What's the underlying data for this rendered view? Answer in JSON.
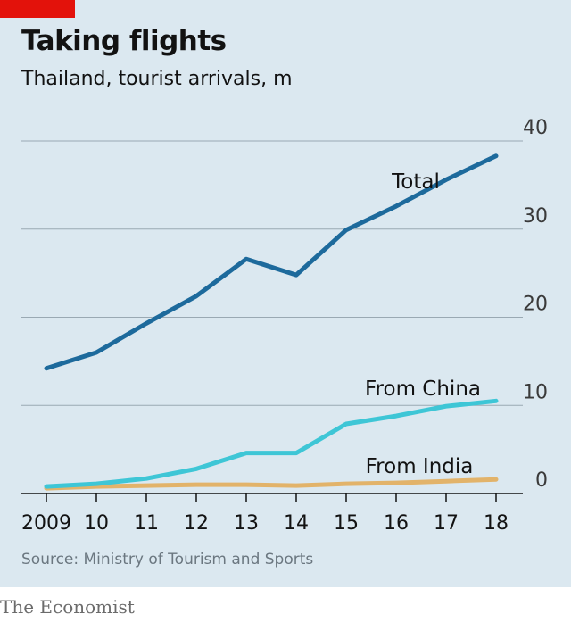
{
  "header": {
    "title": "Taking flights",
    "subtitle": "Thailand, tourist arrivals, m"
  },
  "footer": {
    "source": "Source: Ministry of Tourism and Sports",
    "brand": "The Economist"
  },
  "colors": {
    "background": "#dbe8f0",
    "total": "#1d6a9c",
    "china": "#3ec6d6",
    "india": "#e2b36a",
    "grid": "#9aa9b3",
    "tag": "#e3120b"
  },
  "chart_data": {
    "type": "line",
    "title": "Taking flights",
    "subtitle": "Thailand, tourist arrivals, m",
    "x": [
      "2009",
      "10",
      "11",
      "12",
      "13",
      "14",
      "15",
      "16",
      "17",
      "18"
    ],
    "ylim": [
      0,
      40
    ],
    "yticks": [
      0,
      10,
      20,
      30,
      40
    ],
    "grid": true,
    "series": [
      {
        "name": "Total",
        "color": "#1d6a9c",
        "values": [
          14.2,
          16.0,
          19.3,
          22.4,
          26.6,
          24.8,
          29.9,
          32.6,
          35.6,
          38.3
        ]
      },
      {
        "name": "From China",
        "color": "#3ec6d6",
        "values": [
          0.8,
          1.1,
          1.7,
          2.8,
          4.6,
          4.6,
          7.9,
          8.8,
          9.9,
          10.5
        ]
      },
      {
        "name": "From India",
        "color": "#e2b36a",
        "values": [
          0.6,
          0.8,
          0.9,
          1.0,
          1.0,
          0.9,
          1.1,
          1.2,
          1.4,
          1.6
        ]
      }
    ]
  }
}
